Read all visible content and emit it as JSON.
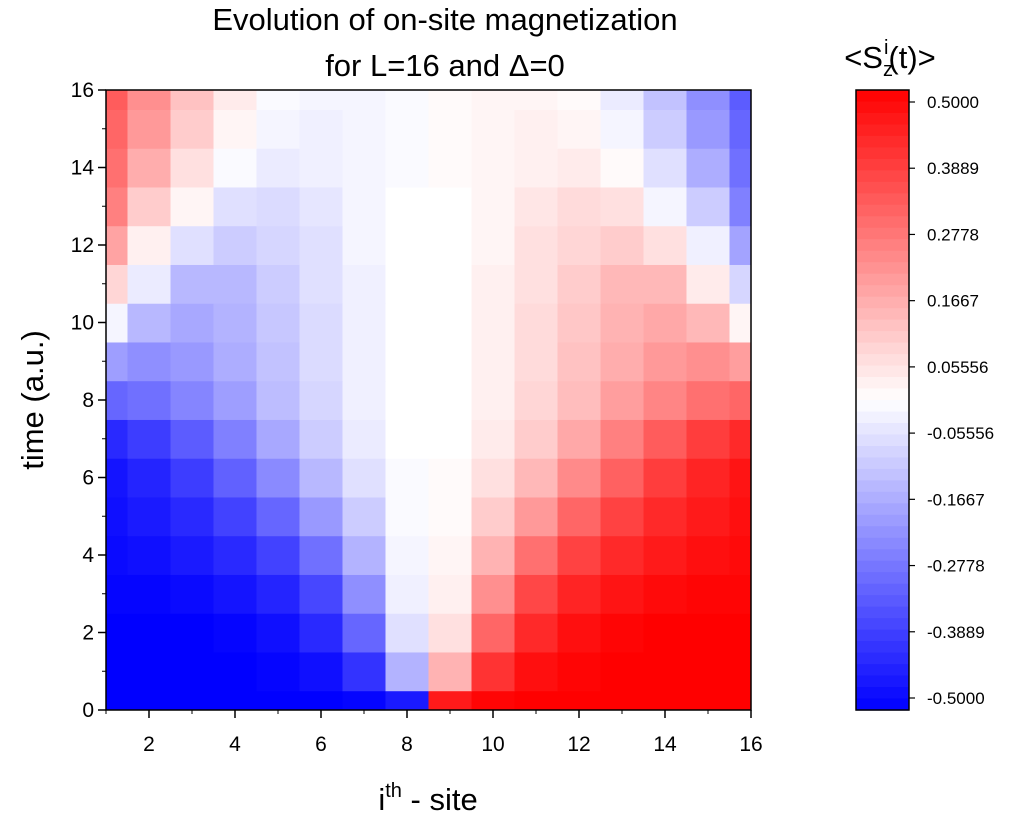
{
  "chart_data": {
    "type": "heatmap",
    "title_line1": "Evolution of on-site magnetization",
    "title_line2": "for L=16 and Δ=0",
    "xlabel_base": "i",
    "xlabel_sup": "th",
    "xlabel_rest": " - site",
    "ylabel": "time (a.u.)",
    "colorbar_label": {
      "open": "<S",
      "sub": "z",
      "sup": "i",
      "close": "(t)>"
    },
    "xlim": [
      1,
      16
    ],
    "ylim": [
      0,
      16
    ],
    "xticks": [
      "2",
      "4",
      "6",
      "8",
      "10",
      "12",
      "14",
      "16"
    ],
    "yticks": [
      "0",
      "2",
      "4",
      "6",
      "8",
      "10",
      "12",
      "14",
      "16"
    ],
    "colorbar_range": [
      -0.5,
      0.5
    ],
    "colorbar_ticks": [
      "0.5000",
      "0.3889",
      "0.2778",
      "0.1667",
      "0.05556",
      "-0.05556",
      "-0.1667",
      "-0.2778",
      "-0.3889",
      "-0.5000"
    ],
    "colors": {
      "positive": "#ff0000",
      "zero": "#ffffff",
      "negative": "#0000ff"
    },
    "sites": [
      1,
      2,
      3,
      4,
      5,
      6,
      7,
      8,
      9,
      10,
      11,
      12,
      13,
      14,
      15,
      16
    ],
    "times": [
      0,
      1,
      2,
      3,
      4,
      5,
      6,
      7,
      8,
      9,
      10,
      11,
      12,
      13,
      14,
      15,
      16
    ],
    "values": [
      [
        -0.5,
        -0.5,
        -0.5,
        -0.5,
        -0.5,
        -0.5,
        -0.49,
        -0.45,
        0.45,
        0.49,
        0.5,
        0.5,
        0.5,
        0.5,
        0.5,
        0.5
      ],
      [
        -0.5,
        -0.5,
        -0.5,
        -0.5,
        -0.49,
        -0.47,
        -0.4,
        -0.15,
        0.15,
        0.4,
        0.47,
        0.49,
        0.5,
        0.5,
        0.5,
        0.5
      ],
      [
        -0.5,
        -0.5,
        -0.5,
        -0.49,
        -0.47,
        -0.42,
        -0.3,
        -0.06,
        0.06,
        0.3,
        0.42,
        0.47,
        0.49,
        0.5,
        0.5,
        0.5
      ],
      [
        -0.49,
        -0.49,
        -0.48,
        -0.46,
        -0.43,
        -0.36,
        -0.22,
        -0.03,
        0.03,
        0.22,
        0.36,
        0.43,
        0.46,
        0.48,
        0.49,
        0.49
      ],
      [
        -0.48,
        -0.47,
        -0.45,
        -0.42,
        -0.37,
        -0.28,
        -0.15,
        -0.02,
        0.02,
        0.15,
        0.28,
        0.37,
        0.42,
        0.45,
        0.47,
        0.48
      ],
      [
        -0.47,
        -0.45,
        -0.42,
        -0.37,
        -0.3,
        -0.2,
        -0.1,
        -0.01,
        0.01,
        0.1,
        0.2,
        0.3,
        0.37,
        0.42,
        0.45,
        0.47
      ],
      [
        -0.46,
        -0.43,
        -0.38,
        -0.31,
        -0.23,
        -0.14,
        -0.06,
        -0.01,
        0.01,
        0.06,
        0.14,
        0.23,
        0.31,
        0.38,
        0.43,
        0.46
      ],
      [
        -0.42,
        -0.38,
        -0.32,
        -0.25,
        -0.17,
        -0.1,
        -0.04,
        0.0,
        0.0,
        0.04,
        0.1,
        0.17,
        0.25,
        0.32,
        0.38,
        0.42
      ],
      [
        -0.3,
        -0.28,
        -0.24,
        -0.19,
        -0.13,
        -0.08,
        -0.03,
        0.0,
        0.0,
        0.03,
        0.08,
        0.13,
        0.19,
        0.24,
        0.28,
        0.3
      ],
      [
        -0.19,
        -0.22,
        -0.2,
        -0.16,
        -0.12,
        -0.07,
        -0.03,
        0.0,
        0.0,
        0.03,
        0.07,
        0.12,
        0.16,
        0.2,
        0.22,
        0.19
      ],
      [
        -0.02,
        -0.14,
        -0.17,
        -0.15,
        -0.11,
        -0.07,
        -0.03,
        0.0,
        0.0,
        0.03,
        0.07,
        0.11,
        0.15,
        0.17,
        0.14,
        0.02
      ],
      [
        0.08,
        -0.04,
        -0.14,
        -0.14,
        -0.1,
        -0.06,
        -0.03,
        0.0,
        0.0,
        0.03,
        0.06,
        0.1,
        0.14,
        0.14,
        0.04,
        -0.08
      ],
      [
        0.18,
        0.03,
        -0.06,
        -0.1,
        -0.08,
        -0.06,
        -0.02,
        0.0,
        0.0,
        0.02,
        0.06,
        0.08,
        0.1,
        0.06,
        -0.03,
        -0.18
      ],
      [
        0.25,
        0.1,
        0.02,
        -0.06,
        -0.07,
        -0.05,
        -0.02,
        0.0,
        0.0,
        0.02,
        0.05,
        0.07,
        0.06,
        -0.02,
        -0.1,
        -0.25
      ],
      [
        0.28,
        0.16,
        0.06,
        -0.01,
        -0.04,
        -0.03,
        -0.02,
        -0.01,
        0.01,
        0.02,
        0.03,
        0.04,
        0.01,
        -0.06,
        -0.16,
        -0.28
      ],
      [
        0.3,
        0.2,
        0.1,
        0.02,
        -0.02,
        -0.03,
        -0.02,
        -0.01,
        0.01,
        0.02,
        0.03,
        0.02,
        -0.02,
        -0.1,
        -0.2,
        -0.3
      ],
      [
        0.32,
        0.22,
        0.12,
        0.04,
        -0.01,
        -0.02,
        -0.02,
        -0.01,
        0.01,
        0.02,
        0.02,
        0.01,
        -0.04,
        -0.12,
        -0.22,
        -0.32
      ]
    ]
  }
}
